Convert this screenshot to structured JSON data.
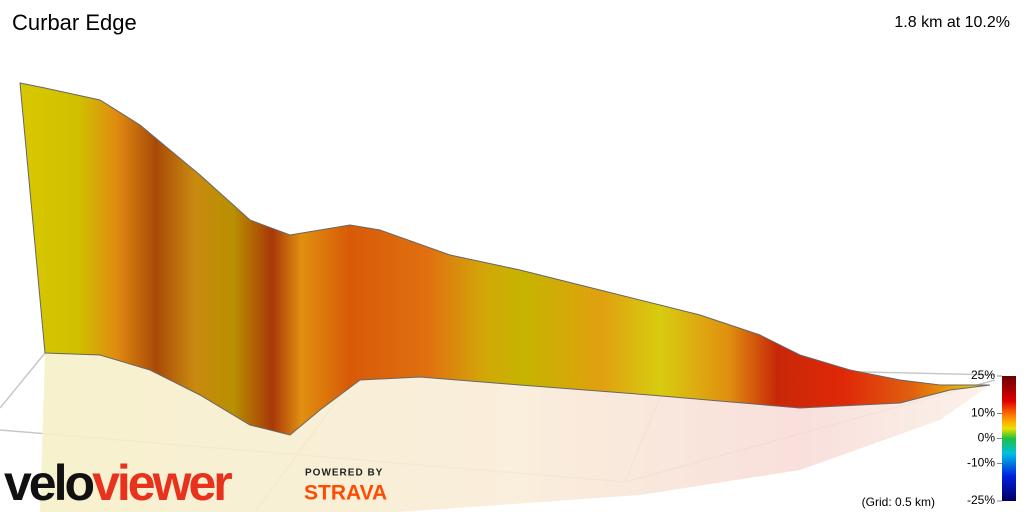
{
  "header": {
    "title": "Curbar Edge",
    "summary": "1.8 km at 10.2%"
  },
  "legend": {
    "ticks": [
      {
        "value": 25,
        "label": "25%"
      },
      {
        "value": 10,
        "label": "10%"
      },
      {
        "value": 0,
        "label": "0%"
      },
      {
        "value": -10,
        "label": "-10%"
      },
      {
        "value": -25,
        "label": "-25%"
      }
    ],
    "grid_note": "(Grid: 0.5 km)"
  },
  "branding": {
    "logo_a": "velo",
    "logo_b": "viewer",
    "powered_by": "POWERED BY",
    "partner": "STRAVA"
  }
}
